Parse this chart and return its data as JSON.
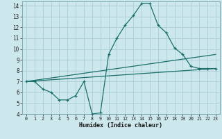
{
  "xlabel": "Humidex (Indice chaleur)",
  "xlim": [
    -0.5,
    23.5
  ],
  "ylim": [
    4,
    14.4
  ],
  "bg_color": "#cde8ec",
  "line_color": "#1a6e6a",
  "grid_color": "#aacdd4",
  "line1_x": [
    0,
    1,
    2,
    3,
    4,
    5,
    6,
    7,
    8,
    9,
    10,
    11,
    12,
    13,
    14,
    15,
    16,
    17,
    18,
    19,
    20,
    21,
    22,
    23
  ],
  "line1_y": [
    7.0,
    7.0,
    6.3,
    6.0,
    5.3,
    5.3,
    5.7,
    7.0,
    4.0,
    4.1,
    9.5,
    11.0,
    12.2,
    13.1,
    14.2,
    14.2,
    12.2,
    11.5,
    10.1,
    9.5,
    8.4,
    8.2,
    8.2,
    8.2
  ],
  "line2_x": [
    0,
    23
  ],
  "line2_y": [
    7.0,
    8.2
  ],
  "line3_x": [
    0,
    23
  ],
  "line3_y": [
    7.0,
    9.5
  ],
  "yticks": [
    4,
    5,
    6,
    7,
    8,
    9,
    10,
    11,
    12,
    13,
    14
  ],
  "xticks": [
    0,
    1,
    2,
    3,
    4,
    5,
    6,
    7,
    8,
    9,
    10,
    11,
    12,
    13,
    14,
    15,
    16,
    17,
    18,
    19,
    20,
    21,
    22,
    23
  ]
}
